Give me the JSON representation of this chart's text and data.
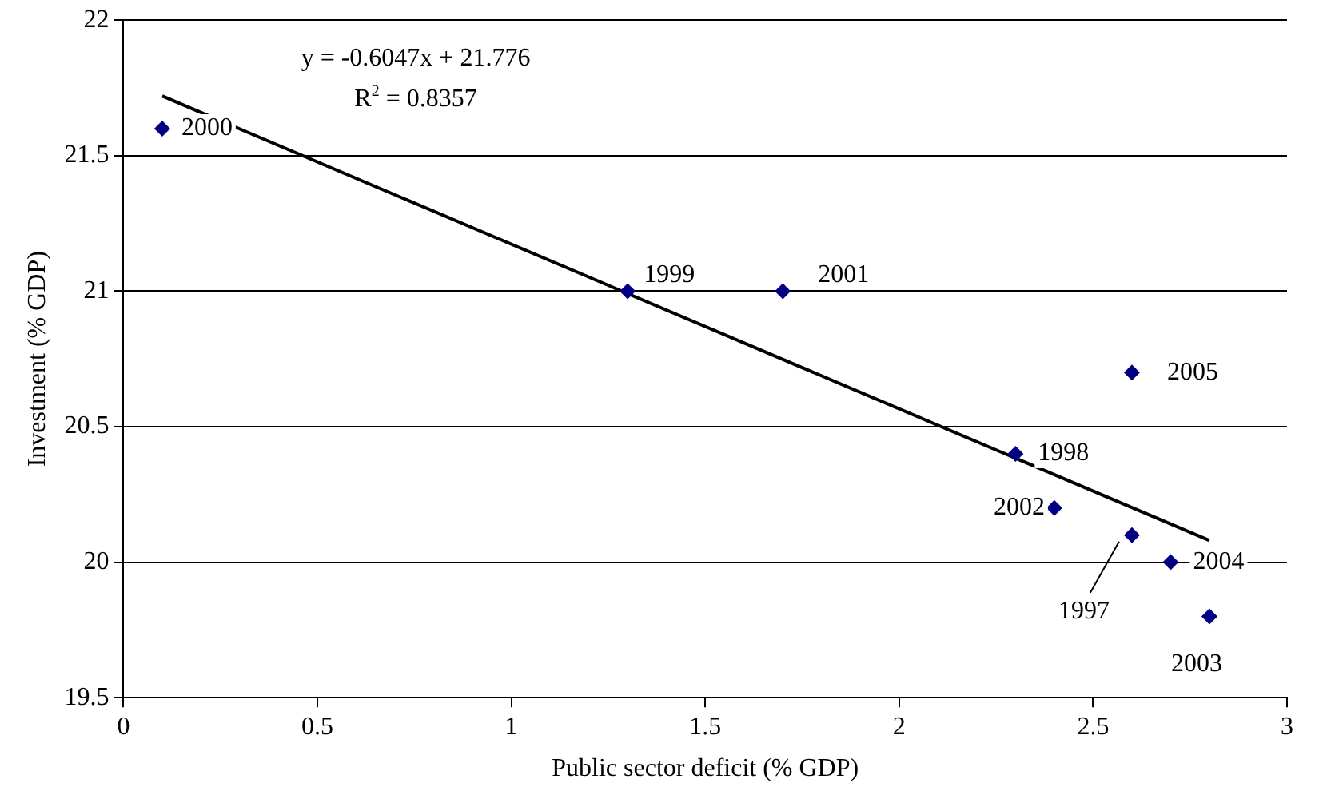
{
  "chart_data": {
    "type": "scatter",
    "xlabel": "Public sector deficit (% GDP)",
    "ylabel": "Investment (% GDP)",
    "xlim": [
      0,
      3
    ],
    "xticks": [
      0,
      0.5,
      1,
      1.5,
      2,
      2.5,
      3
    ],
    "ylim": [
      19.5,
      22
    ],
    "yticks": [
      19.5,
      20,
      20.5,
      21,
      21.5,
      22
    ],
    "grid": "y",
    "legend": false,
    "marker": "diamond",
    "series": [
      {
        "type": "scatter",
        "color": "#000080",
        "x": [
          0.1,
          1.3,
          1.7,
          2.6,
          2.3,
          2.4,
          2.6,
          2.7,
          2.8
        ],
        "values": [
          21.6,
          21.0,
          21.0,
          20.7,
          20.4,
          20.2,
          20.1,
          20.0,
          19.8
        ]
      },
      {
        "type": "line",
        "color": "#000000",
        "marker": "none",
        "x": [
          0.1,
          2.8
        ],
        "values": [
          21.72,
          20.08
        ]
      }
    ],
    "annotations": [
      {
        "text": "2000",
        "x": 0.1,
        "y": 21.6
      },
      {
        "text": "1999",
        "x": 1.3,
        "y": 21.0
      },
      {
        "text": "2001",
        "x": 1.7,
        "y": 21.0
      },
      {
        "text": "2005",
        "x": 2.6,
        "y": 20.7
      },
      {
        "text": "1998",
        "x": 2.3,
        "y": 20.4
      },
      {
        "text": "2002",
        "x": 2.4,
        "y": 20.2
      },
      {
        "text": "1997",
        "x": 2.6,
        "y": 20.1
      },
      {
        "text": "2004",
        "x": 2.7,
        "y": 20.0
      },
      {
        "text": "2003",
        "x": 2.8,
        "y": 19.8
      },
      "y = -0.6047x + 21.776",
      "R$^{2}$ = 0.8357"
    ]
  }
}
